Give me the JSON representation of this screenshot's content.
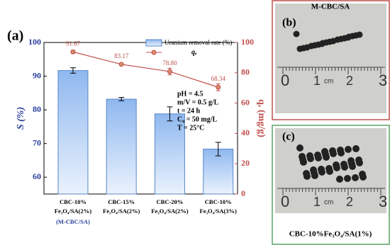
{
  "chart_data": {
    "type": "bar_line",
    "panel_label": "(a)",
    "categories": [
      "CBC-10% Fe₃O₄/SA(2%)",
      "CBC-15% Fe₃O₄/SA(2%)",
      "CBC-20% Fe₃O₄/SA(2%)",
      "CBC-10% Fe₃O₄/SA(3%)"
    ],
    "category_note": "(M-CBC/SA)",
    "ylabel": "S (%)",
    "y2label": "qₑ (mg/g)",
    "ylim": [
      55,
      100
    ],
    "yticks": [
      60,
      70,
      80,
      90,
      100
    ],
    "y2lim": [
      0,
      100
    ],
    "y2ticks": [
      0,
      20,
      40,
      60,
      80,
      100
    ],
    "series": [
      {
        "name": "Uranium removal rate (%)",
        "color": "#8fb8ef",
        "values": [
          91.67,
          83.17,
          78.8,
          68.34
        ],
        "value_labels": [
          "91.67",
          "83.17",
          "78.80",
          "68.34"
        ],
        "errors": [
          0.8,
          0.5,
          2.1,
          2.0
        ]
      },
      {
        "name": "qₑ",
        "color": "#c0504d",
        "axis": "y2",
        "values": [
          93.8,
          85.6,
          80.8,
          70.5
        ],
        "errors": [
          1.0,
          0.8,
          2.2,
          2.3
        ]
      }
    ],
    "annotation": [
      "pH = 4.5",
      "m/V = 0.5 g/L",
      "t = 24 h",
      "C₀ = 50 mg/L",
      "T = 25°C"
    ],
    "legend": "upper right"
  },
  "photos": [
    {
      "label": "(b)",
      "title": "M-CBC/SA",
      "ruler": [
        "0",
        "1",
        "cm",
        "2",
        "3"
      ]
    },
    {
      "label": "(c)",
      "title": "CBC-10%Fe₃O₄/SA(1%)",
      "ruler": [
        "0",
        "1",
        "cm",
        "2",
        "3"
      ]
    }
  ]
}
